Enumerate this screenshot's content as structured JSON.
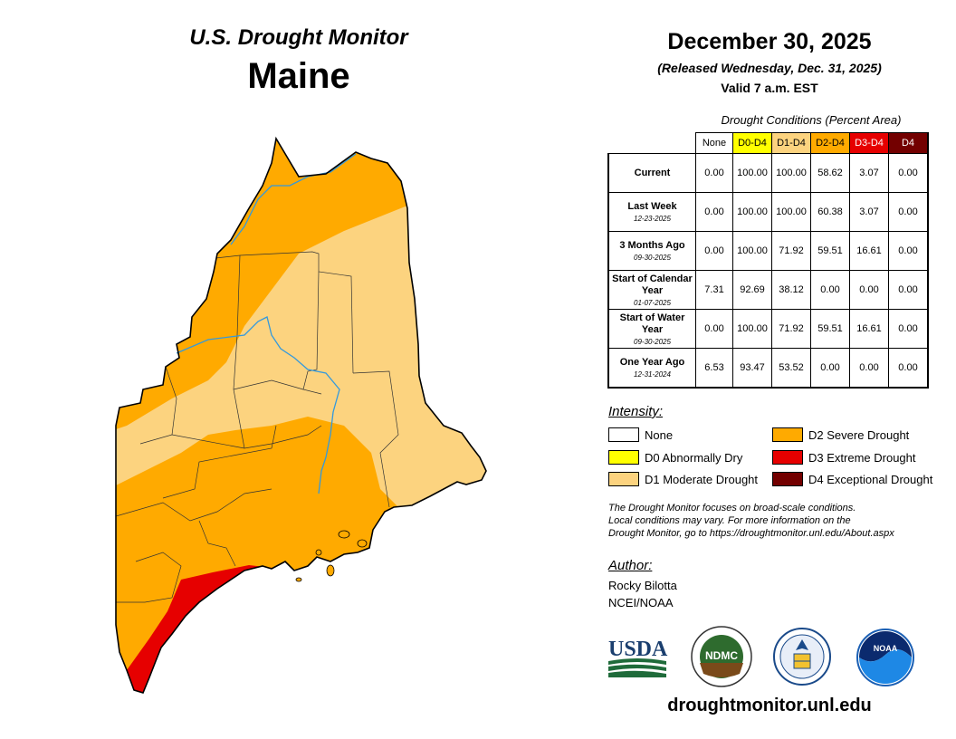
{
  "header": {
    "monitor_title": "U.S. Drought Monitor",
    "state": "Maine",
    "date": "December 30, 2025",
    "released": "(Released Wednesday, Dec. 31, 2025)",
    "valid": "Valid 7 a.m. EST"
  },
  "conditions": {
    "caption": "Drought Conditions (Percent Area)",
    "columns": [
      "None",
      "D0-D4",
      "D1-D4",
      "D2-D4",
      "D3-D4",
      "D4"
    ],
    "rows": [
      {
        "label": "Current",
        "date": "",
        "values": [
          "0.00",
          "100.00",
          "100.00",
          "58.62",
          "3.07",
          "0.00"
        ]
      },
      {
        "label": "Last Week",
        "date": "12-23-2025",
        "values": [
          "0.00",
          "100.00",
          "100.00",
          "60.38",
          "3.07",
          "0.00"
        ]
      },
      {
        "label": "3 Months Ago",
        "date": "09-30-2025",
        "values": [
          "0.00",
          "100.00",
          "71.92",
          "59.51",
          "16.61",
          "0.00"
        ]
      },
      {
        "label": "Start of Calendar Year",
        "date": "01-07-2025",
        "values": [
          "7.31",
          "92.69",
          "38.12",
          "0.00",
          "0.00",
          "0.00"
        ]
      },
      {
        "label": "Start of Water Year",
        "date": "09-30-2025",
        "values": [
          "0.00",
          "100.00",
          "71.92",
          "59.51",
          "16.61",
          "0.00"
        ]
      },
      {
        "label": "One Year Ago",
        "date": "12-31-2024",
        "values": [
          "6.53",
          "93.47",
          "53.52",
          "0.00",
          "0.00",
          "0.00"
        ]
      }
    ]
  },
  "legend": {
    "title": "Intensity:",
    "items": [
      {
        "label": "None",
        "color": "#ffffff"
      },
      {
        "label": "D0 Abnormally Dry",
        "color": "#ffff00"
      },
      {
        "label": "D1 Moderate Drought",
        "color": "#fcd37f"
      },
      {
        "label": "D2 Severe Drought",
        "color": "#ffaa00"
      },
      {
        "label": "D3 Extreme Drought",
        "color": "#e60000"
      },
      {
        "label": "D4 Exceptional Drought",
        "color": "#730000"
      }
    ]
  },
  "note": {
    "line1": "The Drought Monitor focuses on broad-scale conditions.",
    "line2": "Local conditions may vary. For more information on the",
    "line3": "Drought Monitor, go to https://droughtmonitor.unl.edu/About.aspx"
  },
  "author": {
    "title": "Author:",
    "name": "Rocky Bilotta",
    "org": "NCEI/NOAA"
  },
  "logos": {
    "usda": "USDA",
    "ndmc": "NDMC",
    "noaa": "NOAA"
  },
  "footer_url": "droughtmonitor.unl.edu",
  "map": {
    "colors": {
      "d1": "#fcd37f",
      "d2": "#ffaa00",
      "d3": "#e60000",
      "river": "#3399dd",
      "border": "#000000"
    }
  }
}
